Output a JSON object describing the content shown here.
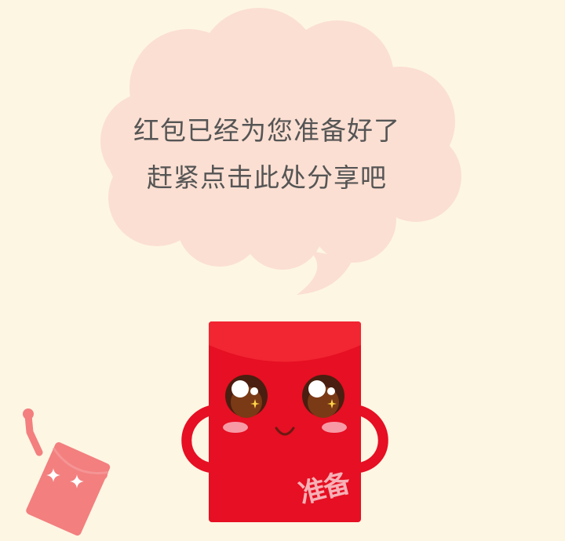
{
  "message": {
    "line1": "红包已经为您准备好了",
    "line2": "赶紧点击此处分享吧"
  },
  "envelope": {
    "stamp_text": "准备"
  },
  "colors": {
    "background": "#fdf6e3",
    "bubble": "#fbdfd2",
    "envelope": "#e60f23",
    "envelope_flap": "#f22532",
    "mini_envelope": "#f37f7f"
  }
}
